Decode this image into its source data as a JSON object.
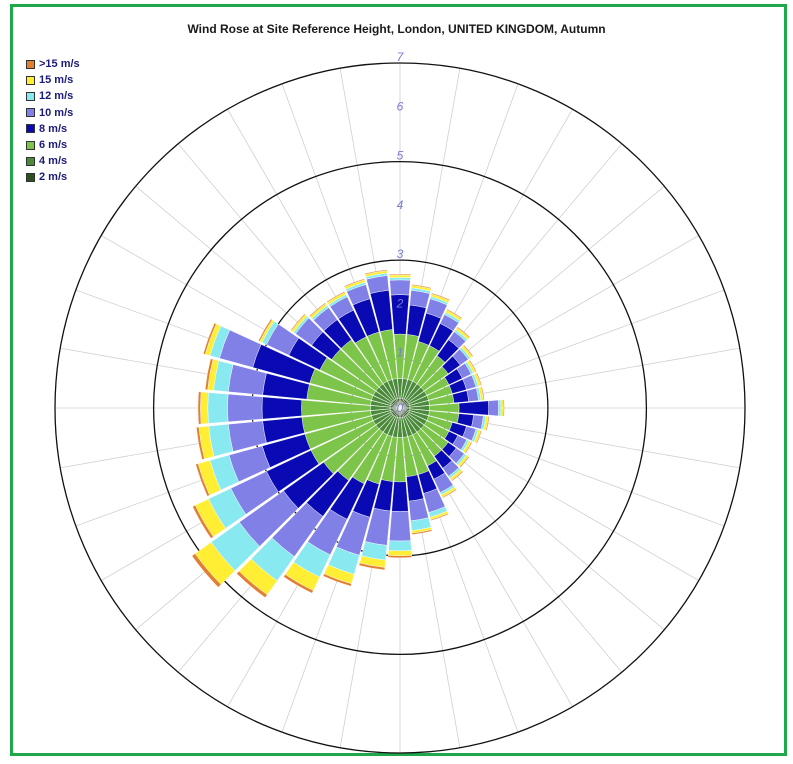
{
  "chart_data": {
    "type": "wind-rose",
    "title": "Wind Rose at Site Reference Height, London, UNITED KINGDOM, Autumn",
    "radial_ticks": [
      "1",
      "2",
      "3",
      "4",
      "5",
      "6",
      "7"
    ],
    "rmax": 7,
    "sectors": 36,
    "direction_start": "N",
    "direction_step_deg": 10,
    "legend_placement": "top-left",
    "grid": true,
    "series": [
      {
        "name": "2 m/s",
        "color": "#2e4f22",
        "values": [
          0.2,
          0.2,
          0.2,
          0.2,
          0.2,
          0.2,
          0.2,
          0.2,
          0.2,
          0.2,
          0.2,
          0.2,
          0.2,
          0.2,
          0.2,
          0.2,
          0.2,
          0.2,
          0.2,
          0.2,
          0.2,
          0.2,
          0.2,
          0.2,
          0.2,
          0.2,
          0.2,
          0.2,
          0.2,
          0.2,
          0.2,
          0.2,
          0.2,
          0.2,
          0.2,
          0.2
        ]
      },
      {
        "name": "4 m/s",
        "color": "#4a8a3a",
        "values": [
          0.4,
          0.4,
          0.4,
          0.4,
          0.4,
          0.4,
          0.4,
          0.4,
          0.4,
          0.4,
          0.4,
          0.4,
          0.4,
          0.4,
          0.4,
          0.4,
          0.4,
          0.4,
          0.4,
          0.4,
          0.4,
          0.4,
          0.4,
          0.4,
          0.4,
          0.4,
          0.4,
          0.4,
          0.4,
          0.4,
          0.4,
          0.4,
          0.4,
          0.4,
          0.4,
          0.4
        ]
      },
      {
        "name": "6 m/s",
        "color": "#7dc44a",
        "values": [
          0.9,
          0.9,
          0.8,
          0.8,
          0.7,
          0.6,
          0.5,
          0.5,
          0.5,
          0.6,
          0.6,
          0.5,
          0.5,
          0.6,
          0.6,
          0.7,
          0.8,
          0.8,
          0.9,
          0.9,
          1.0,
          1.1,
          1.2,
          1.3,
          1.4,
          1.4,
          1.4,
          1.4,
          1.3,
          1.3,
          1.2,
          1.1,
          1.1,
          1.0,
          1.0,
          1.0
        ]
      },
      {
        "name": "8 m/s",
        "color": "#0a0ab4",
        "values": [
          0.8,
          0.6,
          0.6,
          0.5,
          0.4,
          0.3,
          0.3,
          0.3,
          0.3,
          0.6,
          0.3,
          0.3,
          0.2,
          0.2,
          0.3,
          0.3,
          0.4,
          0.5,
          0.6,
          0.6,
          0.7,
          0.8,
          0.9,
          1.0,
          1.0,
          0.9,
          0.8,
          0.8,
          0.9,
          1.2,
          0.7,
          0.5,
          0.5,
          0.6,
          0.7,
          0.8
        ]
      },
      {
        "name": "10 m/s",
        "color": "#8080e6",
        "values": [
          0.3,
          0.3,
          0.3,
          0.2,
          0.2,
          0.2,
          0.2,
          0.2,
          0.2,
          0.2,
          0.2,
          0.2,
          0.2,
          0.2,
          0.2,
          0.3,
          0.4,
          0.4,
          0.6,
          0.7,
          0.8,
          0.8,
          1.0,
          1.1,
          0.8,
          0.7,
          0.7,
          0.7,
          0.7,
          0.7,
          0.5,
          0.4,
          0.3,
          0.3,
          0.3,
          0.3
        ]
      },
      {
        "name": "12 m/s",
        "color": "#88eaf0",
        "values": [
          0.05,
          0.05,
          0.05,
          0.05,
          0.05,
          0.05,
          0.05,
          0.05,
          0.05,
          0.05,
          0.05,
          0.05,
          0.05,
          0.05,
          0.05,
          0.05,
          0.1,
          0.2,
          0.2,
          0.3,
          0.4,
          0.5,
          0.6,
          0.7,
          0.5,
          0.4,
          0.4,
          0.4,
          0.3,
          0.2,
          0.1,
          0.05,
          0.05,
          0.05,
          0.05,
          0.05
        ]
      },
      {
        "name": "15 m/s",
        "color": "#ffee33",
        "values": [
          0.05,
          0.05,
          0.05,
          0.05,
          0.05,
          0.05,
          0.05,
          0.05,
          0.05,
          0.05,
          0.05,
          0.05,
          0.05,
          0.05,
          0.05,
          0.05,
          0.05,
          0.05,
          0.1,
          0.15,
          0.2,
          0.3,
          0.35,
          0.4,
          0.3,
          0.25,
          0.2,
          0.15,
          0.12,
          0.1,
          0.05,
          0.05,
          0.05,
          0.05,
          0.05,
          0.05
        ]
      },
      {
        "name": ">15 m/s",
        "color": "#e08030",
        "values": [
          0.02,
          0.02,
          0.02,
          0.02,
          0.02,
          0.02,
          0.02,
          0.02,
          0.02,
          0.02,
          0.02,
          0.02,
          0.02,
          0.02,
          0.02,
          0.02,
          0.02,
          0.03,
          0.04,
          0.05,
          0.05,
          0.06,
          0.07,
          0.08,
          0.06,
          0.05,
          0.05,
          0.05,
          0.05,
          0.04,
          0.03,
          0.02,
          0.02,
          0.02,
          0.02,
          0.02
        ]
      }
    ]
  }
}
